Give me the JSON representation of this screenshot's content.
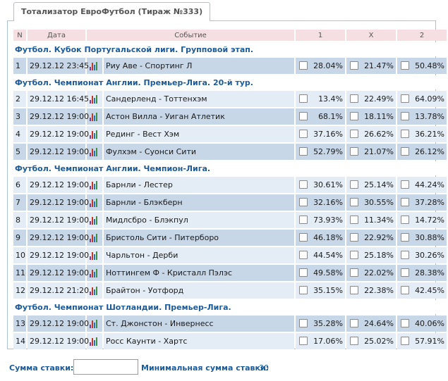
{
  "tab": {
    "title": "Тотализатор ЕвроФутбол (Тираж №333)"
  },
  "headers": {
    "n": "N",
    "date": "Дата",
    "event": "Событие",
    "o1": "1",
    "ox": "X",
    "o2": "2"
  },
  "sections": [
    {
      "title": "Футбол. Кубок Португальской лиги. Групповой этап.",
      "rows": [
        {
          "n": "1",
          "date": "29.12.12 23:45",
          "event": "Риу Аве - Спортинг Л",
          "p1": "28.04%",
          "px": "21.47%",
          "p2": "50.48%"
        }
      ]
    },
    {
      "title": "Футбол. Чемпионат Англии. Премьер-Лига. 20-й тур.",
      "rows": [
        {
          "n": "2",
          "date": "29.12.12 16:45",
          "event": "Сандерленд - Тоттенхэм",
          "p1": "13.4%",
          "px": "22.49%",
          "p2": "64.09%"
        },
        {
          "n": "3",
          "date": "29.12.12 19:00",
          "event": "Астон Вилла - Уиган Атлетик",
          "p1": "68.1%",
          "px": "18.11%",
          "p2": "13.78%"
        },
        {
          "n": "4",
          "date": "29.12.12 19:00",
          "event": "Рединг - Вест Хэм",
          "p1": "37.16%",
          "px": "26.62%",
          "p2": "36.21%"
        },
        {
          "n": "5",
          "date": "29.12.12 19:00",
          "event": "Фулхэм - Суонси Сити",
          "p1": "52.79%",
          "px": "21.07%",
          "p2": "26.12%"
        }
      ]
    },
    {
      "title": "Футбол. Чемпионат Англии. Чемпион-Лига.",
      "rows": [
        {
          "n": "6",
          "date": "29.12.12 19:00",
          "event": "Барнли - Лестер",
          "p1": "30.61%",
          "px": "25.14%",
          "p2": "44.24%"
        },
        {
          "n": "7",
          "date": "29.12.12 19:00",
          "event": "Барнли - Блэкберн",
          "p1": "32.16%",
          "px": "30.55%",
          "p2": "37.28%"
        },
        {
          "n": "8",
          "date": "29.12.12 19:00",
          "event": "Мидлсбро - Блэкпул",
          "p1": "73.93%",
          "px": "11.34%",
          "p2": "14.72%"
        },
        {
          "n": "9",
          "date": "29.12.12 19:00",
          "event": "Бристоль Сити - Питерборо",
          "p1": "46.18%",
          "px": "22.92%",
          "p2": "30.88%"
        },
        {
          "n": "10",
          "date": "29.12.12 19:00",
          "event": "Чарльтон - Дерби",
          "p1": "44.54%",
          "px": "25.18%",
          "p2": "30.26%"
        },
        {
          "n": "11",
          "date": "29.12.12 19:00",
          "event": "Ноттингем Ф - Кристалл Пэлэс",
          "p1": "49.58%",
          "px": "22.02%",
          "p2": "28.38%"
        },
        {
          "n": "12",
          "date": "29.12.12 21:20",
          "event": "Брайтон - Уотфорд",
          "p1": "35.15%",
          "px": "22.38%",
          "p2": "42.45%"
        }
      ]
    },
    {
      "title": "Футбол. Чемпионат Шотландии. Премьер-Лига.",
      "rows": [
        {
          "n": "13",
          "date": "29.12.12 19:00",
          "event": "Ст. Джонстон - Инвернесс",
          "p1": "35.28%",
          "px": "24.64%",
          "p2": "40.06%"
        },
        {
          "n": "14",
          "date": "29.12.12 19:00",
          "event": "Росс Каунти - Хартс",
          "p1": "17.06%",
          "px": "25.02%",
          "p2": "57.91%"
        }
      ]
    }
  ],
  "footer": {
    "stake_label": "Сумма ставки:",
    "stake_value": "",
    "min_label": "Минимальная сумма ставки:",
    "min_value": "30"
  },
  "colors": {
    "link_blue": "#1c5a98",
    "row_dark": "#c7d7e8",
    "row_light": "#e4edf6",
    "header_bg": "#f5dfe2",
    "border": "#a9c3da"
  },
  "icons": {
    "stats": "bar-chart-icon"
  }
}
